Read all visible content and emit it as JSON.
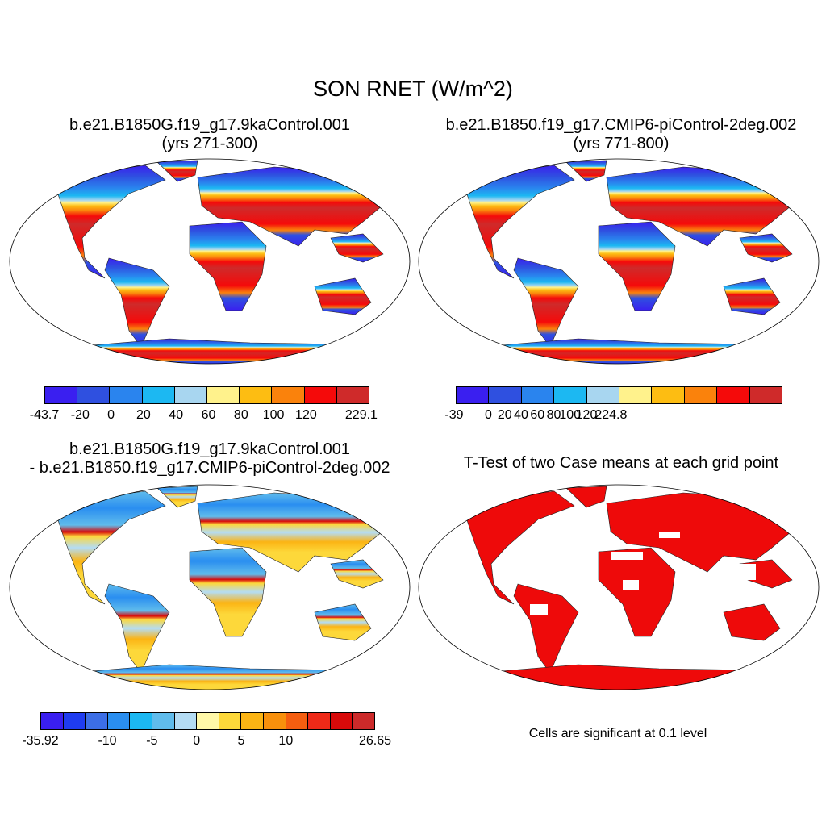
{
  "title": "SON RNET (W/m^2)",
  "panels": {
    "p1": {
      "line1": "b.e21.B1850G.f19_g17.9kaControl.001",
      "line2": "(yrs 271-300)"
    },
    "p2": {
      "line1": "b.e21.B1850.f19_g17.CMIP6-piControl-2deg.002",
      "line2": "(yrs 771-800)"
    },
    "p3": {
      "line1": "b.e21.B1850G.f19_g17.9kaControl.001",
      "line2": "- b.e21.B1850.f19_g17.CMIP6-piControl-2deg.002"
    },
    "p4": {
      "line1": "T-Test of two Case means at each grid point"
    }
  },
  "significance_note": "Cells are significant at 0.1 level",
  "colorbars": {
    "cb1": {
      "colors": [
        "#3a1ff0",
        "#2f50e0",
        "#2a84ee",
        "#1cb8f2",
        "#a8d6f0",
        "#fff28c",
        "#fdbd12",
        "#fa820c",
        "#f50a0a",
        "#cf2a2a"
      ],
      "labels": [
        "-43.7",
        "-20",
        "0",
        "20",
        "40",
        "60",
        "80",
        "100",
        "120",
        "229.1"
      ]
    },
    "cb2": {
      "colors": [
        "#3a1ff0",
        "#2f50e0",
        "#2a84ee",
        "#1cb8f2",
        "#a8d6f0",
        "#fff28c",
        "#fdbd12",
        "#fa820c",
        "#f50a0a",
        "#cf2a2a"
      ],
      "labels": [
        "-39",
        "0",
        "20",
        "40",
        "60",
        "80",
        "100",
        "120",
        "224.8"
      ]
    },
    "cb3": {
      "colors": [
        "#3a1ff0",
        "#1f3cf0",
        "#3c6ee6",
        "#2a8ef0",
        "#1cb8f2",
        "#60bcec",
        "#b4dcf4",
        "#fff8a8",
        "#fdd83a",
        "#fbb414",
        "#f8900c",
        "#f55e10",
        "#ee2a18",
        "#d80a0a",
        "#cc2a2a"
      ],
      "labels": [
        "-35.92",
        "-10",
        "-5",
        "0",
        "5",
        "10",
        "26.65"
      ]
    }
  },
  "map_data": {
    "projection": "Robinson",
    "variable": "RNET",
    "season": "SON",
    "units": "W/m^2",
    "significance_level": 0.1
  }
}
